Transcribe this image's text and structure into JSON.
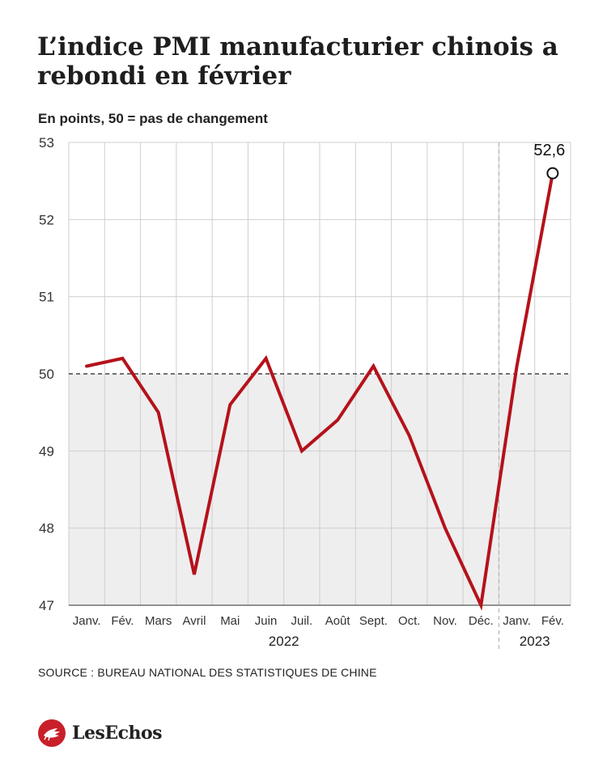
{
  "title": "L’indice PMI manufacturier chinois a rebondi en février",
  "subtitle": "En points, 50 = pas de changement",
  "source": "SOURCE : BUREAU NATIONAL DES STATISTIQUES DE CHINE",
  "brand": {
    "name": "LesEchos",
    "logo_icon": "les-echos-bird-icon",
    "logo_color": "#c8202a"
  },
  "colors": {
    "line": "#b5121b",
    "shaded_area": "#eeeeee",
    "grid": "#cfcfcf"
  },
  "chart_data": {
    "type": "line",
    "title": "L’indice PMI manufacturier chinois a rebondi en février",
    "ylabel": "En points, 50 = pas de changement",
    "categories": [
      "Janv.",
      "Fév.",
      "Mars",
      "Avril",
      "Mai",
      "Juin",
      "Juil.",
      "Août",
      "Sept.",
      "Oct.",
      "Nov.",
      "Déc.",
      "Janv.",
      "Fév."
    ],
    "years": [
      {
        "label": "2022",
        "from": 0,
        "to": 11
      },
      {
        "label": "2023",
        "from": 12,
        "to": 13
      }
    ],
    "series": [
      {
        "values": [
          50.1,
          50.2,
          49.5,
          47.4,
          49.6,
          50.2,
          49.0,
          49.4,
          50.1,
          49.2,
          48.0,
          47.0,
          50.1,
          52.6
        ]
      }
    ],
    "ylim": [
      47,
      53
    ],
    "yticks": [
      47,
      48,
      49,
      50,
      51,
      52,
      53
    ],
    "reference_line": 50,
    "shaded_below_reference": true,
    "last_point_label": "52,6",
    "grid": true
  }
}
